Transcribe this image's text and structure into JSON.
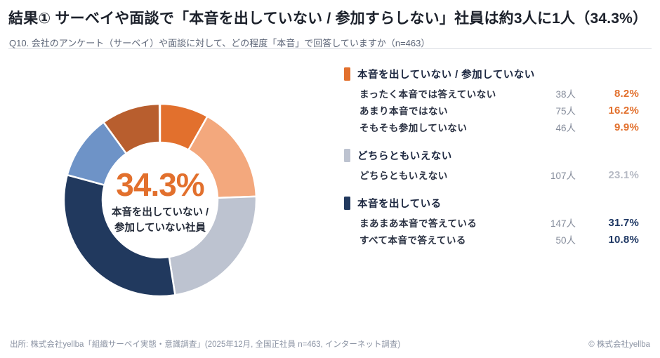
{
  "page": {
    "title": "結果①  サーベイや面談で「本音を出していない / 参加すらしない」社員は約3人に1人（34.3%）",
    "subtitle": "Q10. 会社のアンケート（サーベイ）や面談に対して、どの程度「本音」で回答していますか（n=463）",
    "footer_source": "出所: 株式会社yellba「組織サーベイ実態・意識調査」(2025年12月, 全国正社員 n=463, インターネット調査)",
    "footer_copyright": "© 株式会社yellba"
  },
  "donut": {
    "center_value": "34.3%",
    "center_label_line1": "本音を出していない /",
    "center_label_line2": "参加していない社員",
    "center_value_color": "#e2702d"
  },
  "chart_data": {
    "type": "pie",
    "subtype": "donut",
    "title": "Q10. 会社のアンケート（サーベイ）や面談に対して、どの程度「本音」で回答していますか（n=463）",
    "n": 463,
    "center_text": "34.3% 本音を出していない / 参加していない社員",
    "start_angle_deg": 0,
    "direction": "clockwise",
    "inner_radius_ratio": 0.6,
    "segments": [
      {
        "label": "まったく本音では答えていない",
        "value": 8.2,
        "count": 38,
        "color": "#e2702d"
      },
      {
        "label": "あまり本音ではない",
        "value": 16.2,
        "count": 75,
        "color": "#f3a87d"
      },
      {
        "label": "どちらともいえない",
        "value": 23.1,
        "count": 107,
        "color": "#bdc3d0"
      },
      {
        "label": "まあまあ本音で答えている",
        "value": 31.7,
        "count": 147,
        "color": "#21395e"
      },
      {
        "label": "すべて本音で答えている",
        "value": 10.8,
        "count": 50,
        "color": "#6e93c7"
      },
      {
        "label": "そもそも参加していない",
        "value": 9.9,
        "count": 46,
        "color": "#b85e2e"
      }
    ]
  },
  "legend": {
    "groups": [
      {
        "header": "本音を出していない / 参加していない",
        "color": "#e2702d",
        "pct_color": "#e2702d",
        "rows": [
          {
            "label": "まったく本音では答えていない",
            "count": "38人",
            "pct": "8.2%"
          },
          {
            "label": "あまり本音ではない",
            "count": "75人",
            "pct": "16.2%"
          },
          {
            "label": "そもそも参加していない",
            "count": "46人",
            "pct": "9.9%"
          }
        ]
      },
      {
        "header": "どちらともいえない",
        "color": "#bdc3d0",
        "pct_color": "#b6bac4",
        "rows": [
          {
            "label": "どちらともいえない",
            "count": "107人",
            "pct": "23.1%"
          }
        ]
      },
      {
        "header": "本音を出している",
        "color": "#21395e",
        "pct_color": "#1f3864",
        "rows": [
          {
            "label": "まあまあ本音で答えている",
            "count": "147人",
            "pct": "31.7%"
          },
          {
            "label": "すべて本音で答えている",
            "count": "50人",
            "pct": "10.8%"
          }
        ]
      }
    ]
  }
}
